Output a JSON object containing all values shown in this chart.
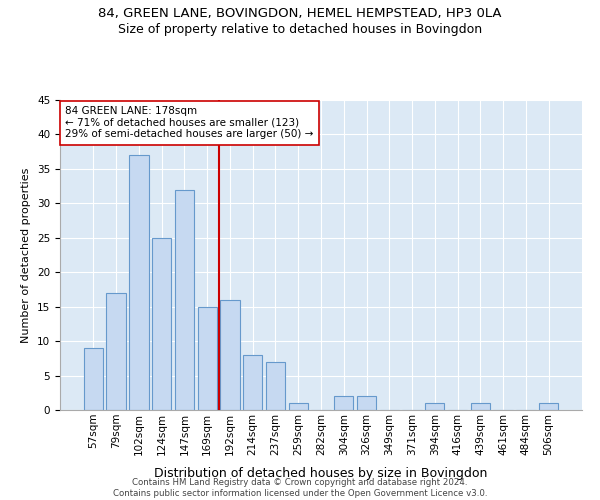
{
  "title1": "84, GREEN LANE, BOVINGDON, HEMEL HEMPSTEAD, HP3 0LA",
  "title2": "Size of property relative to detached houses in Bovingdon",
  "xlabel": "Distribution of detached houses by size in Bovingdon",
  "ylabel": "Number of detached properties",
  "categories": [
    "57sqm",
    "79sqm",
    "102sqm",
    "124sqm",
    "147sqm",
    "169sqm",
    "192sqm",
    "214sqm",
    "237sqm",
    "259sqm",
    "282sqm",
    "304sqm",
    "326sqm",
    "349sqm",
    "371sqm",
    "394sqm",
    "416sqm",
    "439sqm",
    "461sqm",
    "484sqm",
    "506sqm"
  ],
  "values": [
    9,
    17,
    37,
    25,
    32,
    15,
    16,
    8,
    7,
    1,
    0,
    2,
    2,
    0,
    0,
    1,
    0,
    1,
    0,
    0,
    1
  ],
  "bar_color": "#c6d9f1",
  "bar_edge_color": "#6699cc",
  "vline_x": 6.0,
  "vline_color": "#cc0000",
  "annotation_text": "84 GREEN LANE: 178sqm\n← 71% of detached houses are smaller (123)\n29% of semi-detached houses are larger (50) →",
  "annotation_box_color": "#cc0000",
  "ylim": [
    0,
    45
  ],
  "yticks": [
    0,
    5,
    10,
    15,
    20,
    25,
    30,
    35,
    40,
    45
  ],
  "background_color": "#dce9f5",
  "grid_color": "#ffffff",
  "footer_text": "Contains HM Land Registry data © Crown copyright and database right 2024.\nContains public sector information licensed under the Open Government Licence v3.0.",
  "title1_fontsize": 9.5,
  "title2_fontsize": 9,
  "xlabel_fontsize": 9,
  "ylabel_fontsize": 8,
  "tick_fontsize": 7.5,
  "footer_fontsize": 6.2
}
